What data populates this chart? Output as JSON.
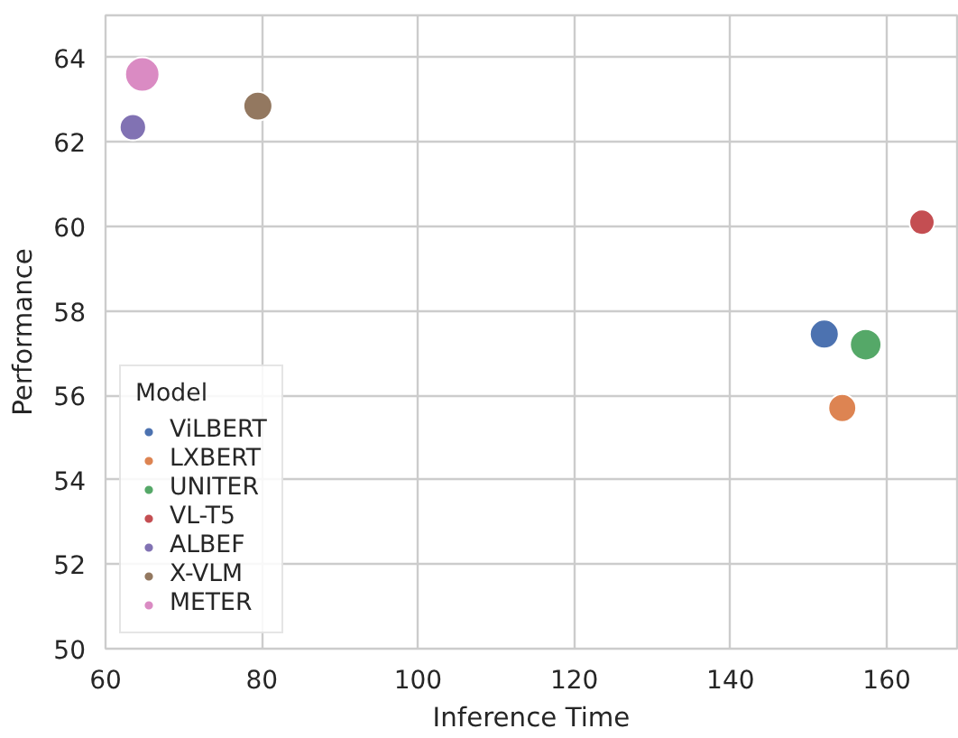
{
  "chart_data": {
    "type": "bubble",
    "xlabel": "Inference Time",
    "ylabel": "Performance",
    "legend_title": "Model",
    "legend": "bottom left",
    "grid": true,
    "xlim": [
      60,
      169
    ],
    "xticks": [
      60,
      80,
      100,
      120,
      140,
      160
    ],
    "ylim": [
      50,
      65
    ],
    "yticks": [
      50,
      52,
      54,
      56,
      58,
      60,
      62,
      64
    ],
    "series": [
      {
        "name": "ViLBERT",
        "color": "#4c72b0",
        "x": [
          152.0
        ],
        "values": [
          57.45
        ],
        "sizes": [
          0.71
        ]
      },
      {
        "name": "LXBERT",
        "color": "#dd8452",
        "x": [
          154.3
        ],
        "values": [
          55.7
        ],
        "sizes": [
          0.66
        ]
      },
      {
        "name": "UNITER",
        "color": "#55a868",
        "x": [
          157.3
        ],
        "values": [
          57.2
        ],
        "sizes": [
          0.84
        ]
      },
      {
        "name": "VL-T5",
        "color": "#c44e52",
        "x": [
          164.5
        ],
        "values": [
          60.1
        ],
        "sizes": [
          0.54
        ]
      },
      {
        "name": "ALBEF",
        "color": "#8172b3",
        "x": [
          63.5
        ],
        "values": [
          62.35
        ],
        "sizes": [
          0.59
        ]
      },
      {
        "name": "X-VLM",
        "color": "#937860",
        "x": [
          79.5
        ],
        "values": [
          62.85
        ],
        "sizes": [
          0.71
        ]
      },
      {
        "name": "METER",
        "color": "#da8bc3",
        "x": [
          64.7
        ],
        "values": [
          63.6
        ],
        "sizes": [
          1
        ]
      }
    ]
  }
}
